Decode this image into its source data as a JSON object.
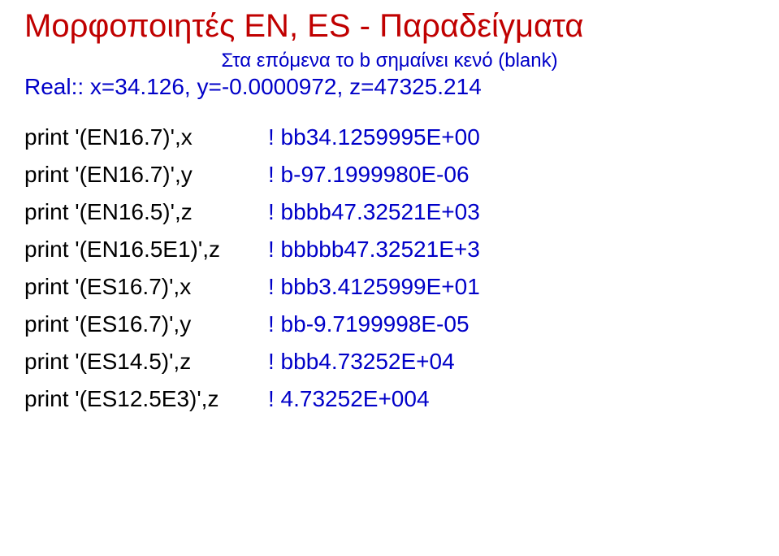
{
  "title": "Μορφοποιητές EN, ES - Παραδείγματα",
  "subtitle": "Στα επόμενα το b σημαίνει κενό (blank)",
  "decl": "Real:: x=34.126, y=-0.0000972, z=47325.214",
  "rows": [
    {
      "stmt": "print '(EN16.7)',x",
      "out": "!  bb34.1259995E+00"
    },
    {
      "stmt": "print '(EN16.7)',y",
      "out": "!  b-97.1999980E-06"
    },
    {
      "stmt": "print '(EN16.5)',z",
      "out": "!  bbbb47.32521E+03"
    },
    {
      "stmt": "print '(EN16.5E1)',z",
      "out": "!  bbbbb47.32521E+3"
    },
    {
      "stmt": "print '(ES16.7)',x",
      "out": "!  bbb3.4125999E+01"
    },
    {
      "stmt": "print '(ES16.7)',y",
      "out": "!  bb-9.7199998E-05"
    },
    {
      "stmt": "print '(ES14.5)',z",
      "out": "!  bbb4.73252E+04"
    },
    {
      "stmt": "print '(ES12.5E3)',z",
      "out": "!  4.73252E+004"
    }
  ]
}
